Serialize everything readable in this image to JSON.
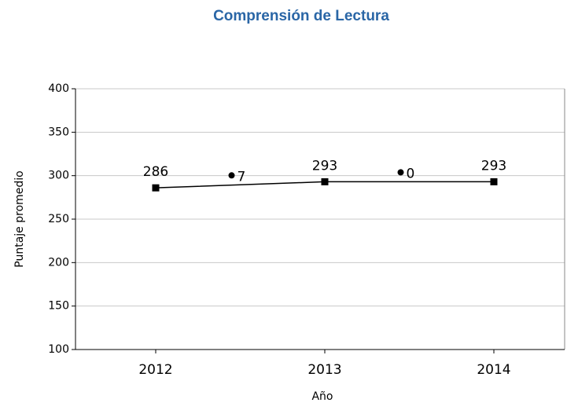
{
  "chart_data": {
    "type": "line",
    "title": "Comprensión de Lectura",
    "x_label": "Año",
    "y_label": "Puntaje promedio",
    "categories": [
      "2012",
      "2013",
      "2014"
    ],
    "series": [
      {
        "name": "Puntaje promedio",
        "color": "#000000",
        "values": [
          286,
          293,
          293
        ]
      }
    ],
    "changes": [
      7,
      0
    ],
    "ylim": [
      100,
      400
    ],
    "yticks": [
      100,
      150,
      200,
      250,
      300,
      350,
      400
    ],
    "grid": true
  }
}
